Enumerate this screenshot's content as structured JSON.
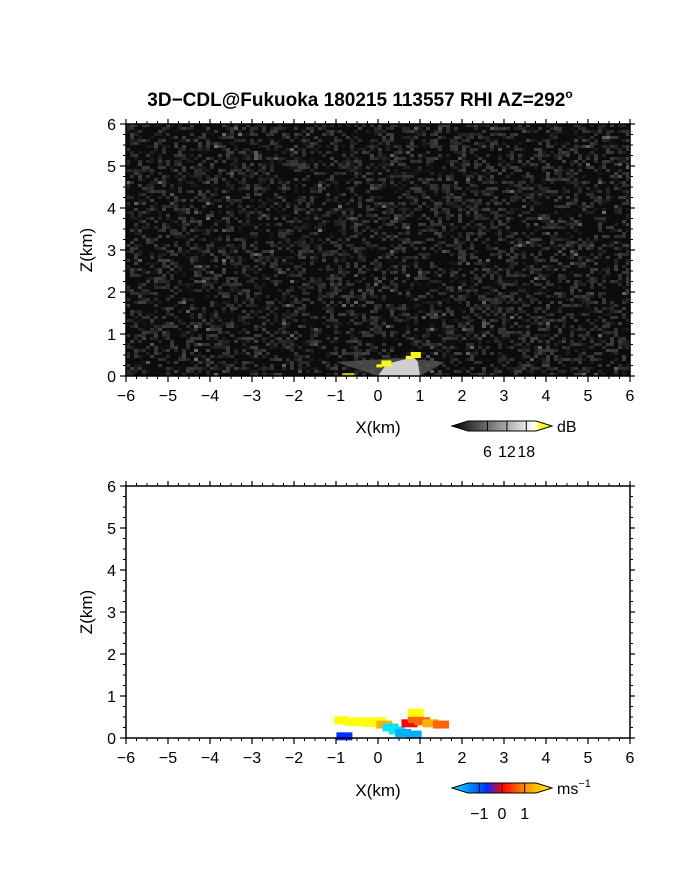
{
  "figure": {
    "title": "3D−CDL@Fukuoka 180215 113557 RHI AZ=292",
    "title_superscript": "o"
  },
  "chart_data": [
    {
      "type": "heatmap",
      "name": "reflectivity-panel",
      "title": "",
      "xlabel": "X(km)",
      "ylabel": "Z(km)",
      "xlim": [
        -6,
        6
      ],
      "ylim": [
        0,
        6
      ],
      "xticks": [
        "−6",
        "−5",
        "−4",
        "−3",
        "−2",
        "−1",
        "0",
        "1",
        "2",
        "3",
        "4",
        "5",
        "6"
      ],
      "yticks": [
        "0",
        "1",
        "2",
        "3",
        "4",
        "5",
        "6"
      ],
      "background": "noise-dark-gray",
      "colorbar": {
        "unit": "dB",
        "tick_labels": [
          "6",
          "12",
          "18"
        ],
        "tick_values": [
          6,
          12,
          18
        ],
        "range": [
          0,
          21
        ],
        "colors": [
          "#000000",
          "#ffffff",
          "#ffff00"
        ]
      },
      "features": [
        {
          "kind": "echo-bright",
          "x_range": [
            -1.0,
            1.6
          ],
          "z_range": [
            0.0,
            0.45
          ],
          "value_db": 14
        },
        {
          "kind": "echo-peak",
          "x": 0.9,
          "z": 0.5,
          "value_db": 20
        },
        {
          "kind": "echo-peak",
          "x": 0.2,
          "z": 0.3,
          "value_db": 19
        }
      ]
    },
    {
      "type": "heatmap",
      "name": "velocity-panel",
      "title": "",
      "xlabel": "X(km)",
      "ylabel": "Z(km)",
      "xlim": [
        -6,
        6
      ],
      "ylim": [
        0,
        6
      ],
      "xticks": [
        "−6",
        "−5",
        "−4",
        "−3",
        "−2",
        "−1",
        "0",
        "1",
        "2",
        "3",
        "4",
        "5",
        "6"
      ],
      "yticks": [
        "0",
        "1",
        "2",
        "3",
        "4",
        "5",
        "6"
      ],
      "background": "white",
      "colorbar": {
        "unit": "ms",
        "unit_superscript": "−1",
        "tick_labels": [
          "−1",
          "0",
          "1"
        ],
        "tick_values": [
          -1,
          0,
          1
        ],
        "range": [
          -1.5,
          1.5
        ],
        "colors": [
          "#00e5ff",
          "#0030ff",
          "#ff0000",
          "#ffff00"
        ]
      },
      "cells": [
        {
          "x": -0.85,
          "z": 0.42,
          "v": 1.2
        },
        {
          "x": -0.6,
          "z": 0.38,
          "v": 1.3
        },
        {
          "x": -0.4,
          "z": 0.4,
          "v": 1.1
        },
        {
          "x": -0.2,
          "z": 0.36,
          "v": 1.25
        },
        {
          "x": 0.0,
          "z": 0.4,
          "v": 1.3
        },
        {
          "x": 0.15,
          "z": 0.32,
          "v": 0.9
        },
        {
          "x": 0.3,
          "z": 0.25,
          "v": -1.1
        },
        {
          "x": 0.45,
          "z": 0.18,
          "v": -1.3
        },
        {
          "x": 0.6,
          "z": 0.12,
          "v": -1.0
        },
        {
          "x": 0.75,
          "z": 0.35,
          "v": 0.3
        },
        {
          "x": 0.9,
          "z": 0.45,
          "v": 0.6
        },
        {
          "x": 0.9,
          "z": 0.6,
          "v": 1.1
        },
        {
          "x": 1.05,
          "z": 0.4,
          "v": 0.5
        },
        {
          "x": 1.25,
          "z": 0.35,
          "v": 0.8
        },
        {
          "x": 1.5,
          "z": 0.32,
          "v": 0.7
        },
        {
          "x": 0.85,
          "z": 0.08,
          "v": -0.8
        },
        {
          "x": -0.8,
          "z": 0.04,
          "v": -0.2
        }
      ]
    }
  ]
}
